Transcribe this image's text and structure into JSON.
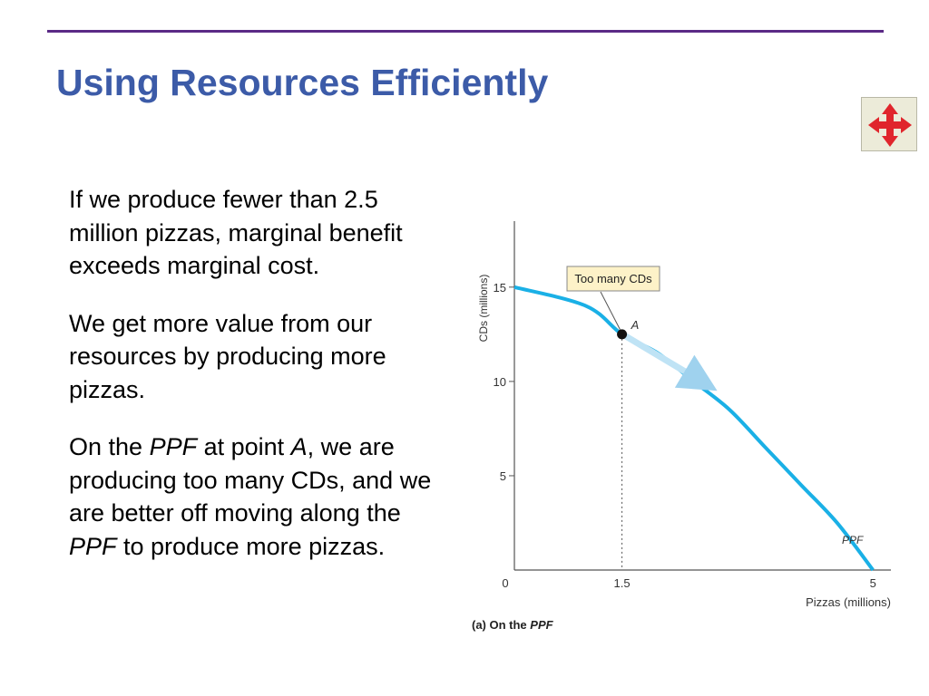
{
  "slide": {
    "title": "Using Resources Efficiently"
  },
  "nav": {
    "icon": "four-way-arrow-icon",
    "color": "#e0252c"
  },
  "text": {
    "p1": "If we produce fewer than 2.5 million pizzas, marginal benefit exceeds marginal cost.",
    "p2": "We get more value from our resources by producing more pizzas.",
    "p3_a": "On the ",
    "p3_ppf1": "PPF",
    "p3_b": " at point ",
    "p3_pointA": "A",
    "p3_c": ", we are producing too many CDs, and we are better off moving along the ",
    "p3_ppf2": "PPF",
    "p3_d": " to produce more pizzas."
  },
  "chart_data": {
    "type": "line",
    "caption_a": "(a) On the ",
    "caption_b": "PPF",
    "xlabel": "Pizzas (millions)",
    "ylabel": "CDs (millions)",
    "xlim": [
      0,
      5.25
    ],
    "ylim": [
      0,
      18.5
    ],
    "y_ticks": [
      5,
      10,
      15
    ],
    "x_tick_labels": [
      "0",
      "1.5",
      "5"
    ],
    "x_tick_values": [
      0,
      1.5,
      5
    ],
    "series": [
      {
        "name": "PPF",
        "x": [
          0,
          1.0,
          1.5,
          2.0,
          2.5,
          3.0,
          3.5,
          4.0,
          4.5,
          5.0
        ],
        "y": [
          15,
          14.0,
          12.5,
          11.5,
          10.0,
          8.5,
          6.5,
          4.5,
          2.5,
          0
        ],
        "color": "#1ab0e6"
      }
    ],
    "point": {
      "label": "A",
      "x": 1.5,
      "y": 12.5
    },
    "annotation": "Too many CDs",
    "arrow": {
      "from": [
        1.5,
        12.5
      ],
      "to": [
        2.5,
        10.5
      ]
    }
  }
}
